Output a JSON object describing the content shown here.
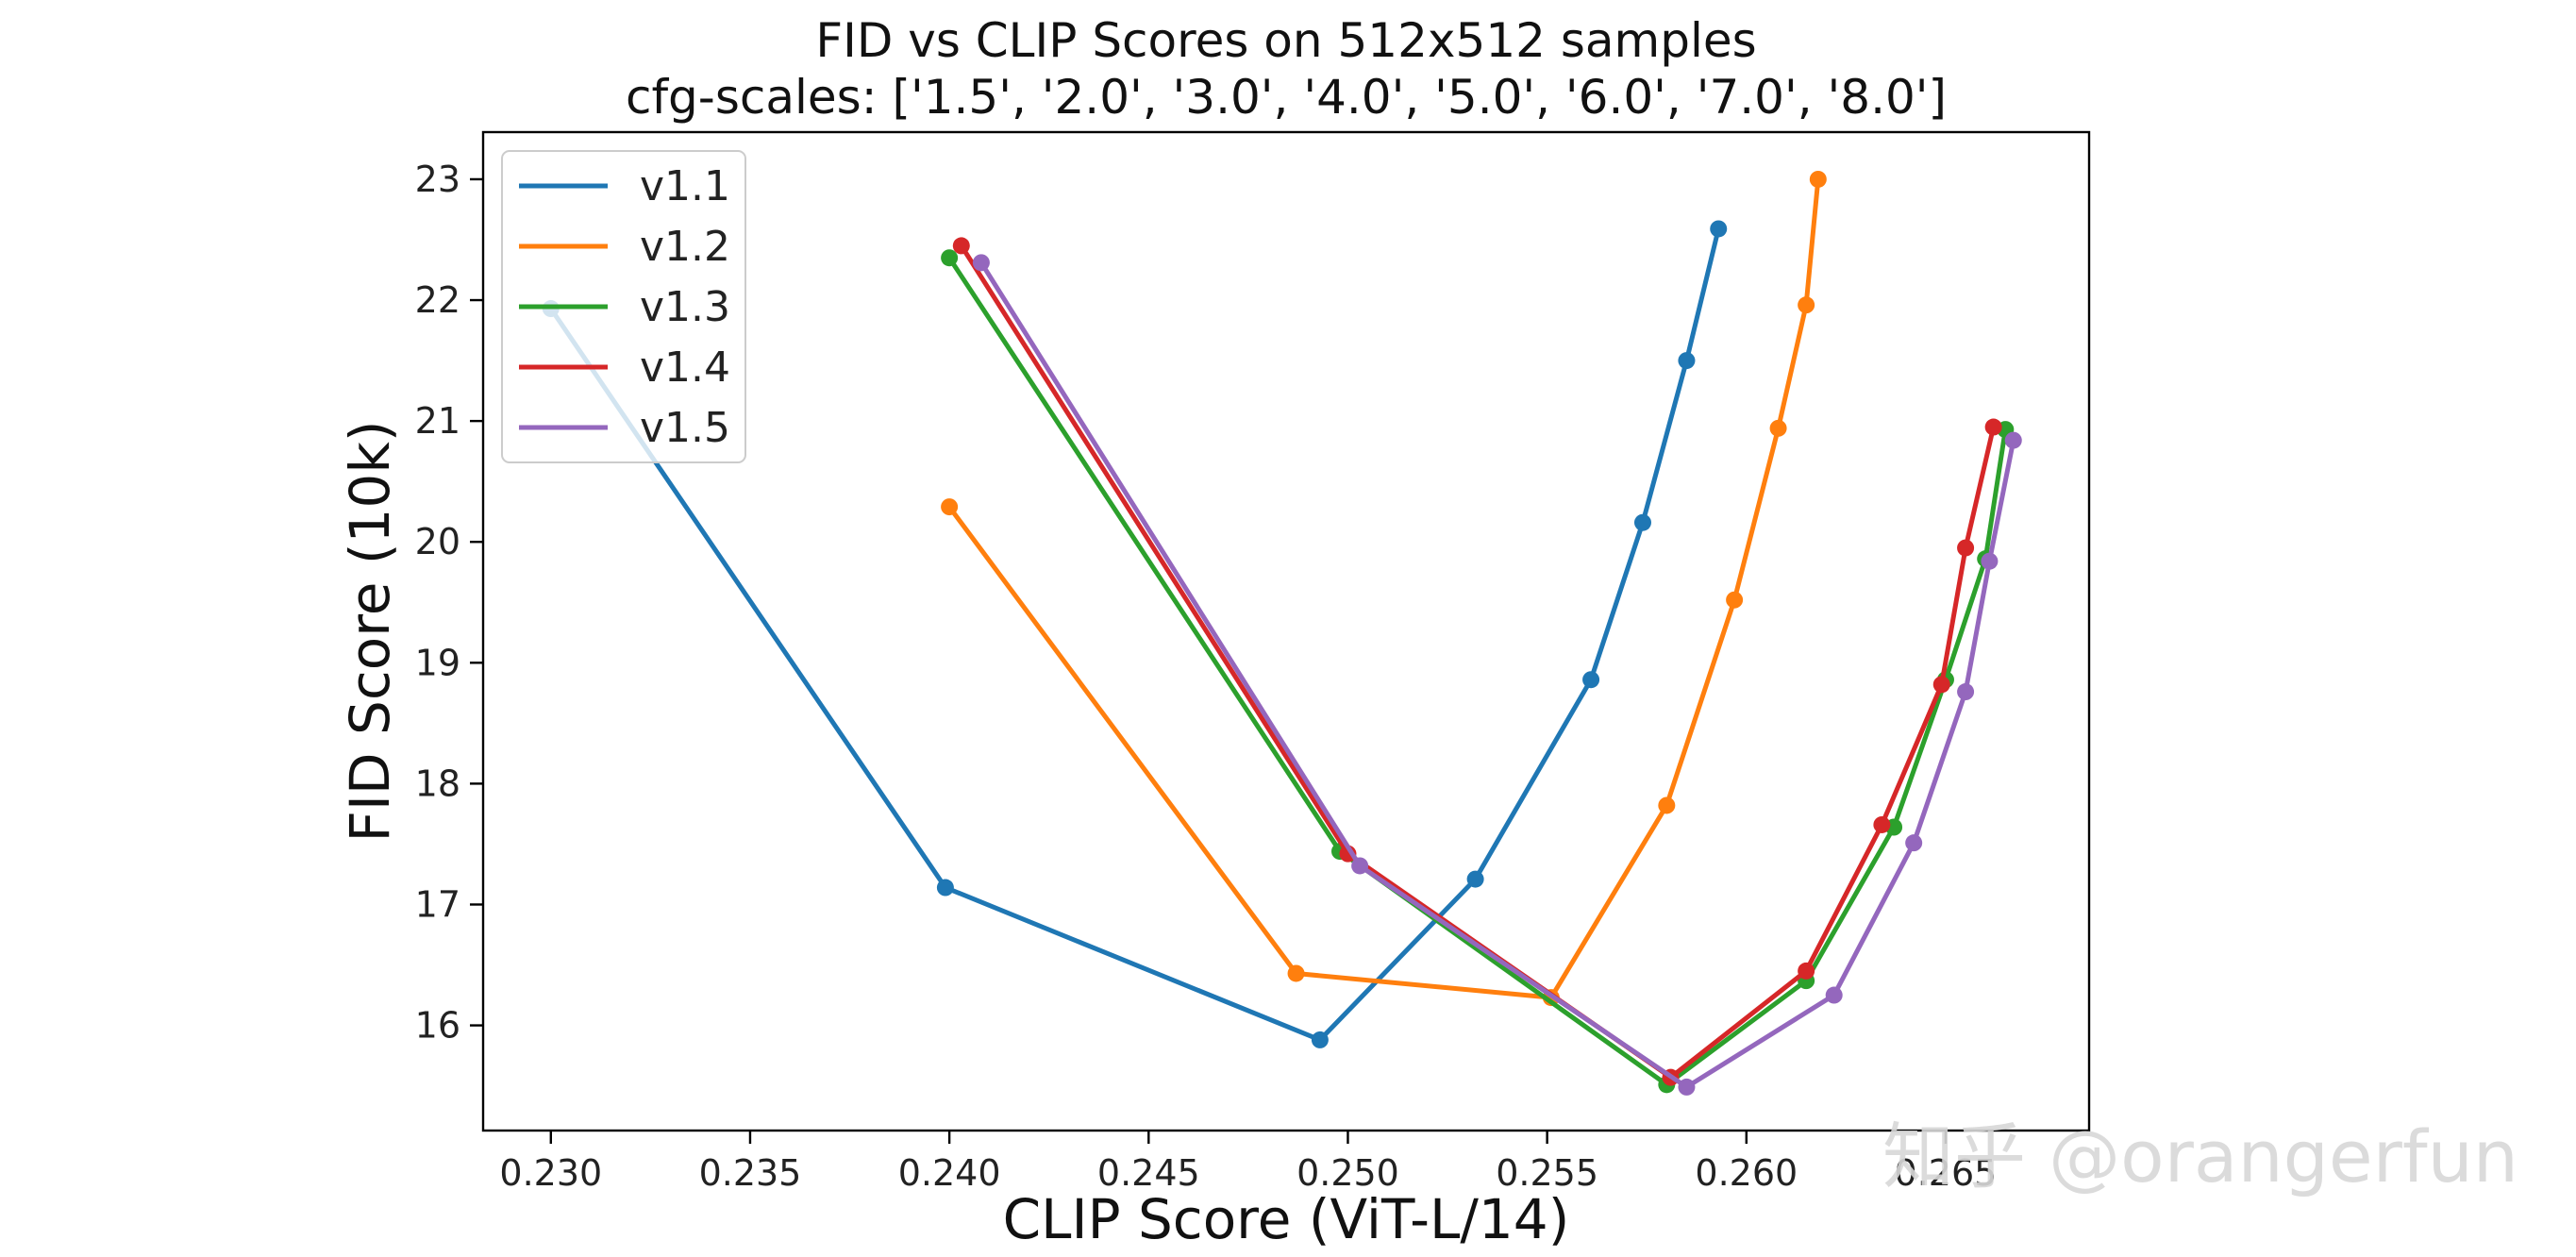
{
  "chart_data": {
    "type": "line",
    "title": "FID vs CLIP Scores on 512x512 samples",
    "subtitle": "cfg-scales: ['1.5', '2.0', '3.0', '4.0', '5.0', '6.0', '7.0', '8.0']",
    "xlabel": "CLIP Score (ViT-L/14)",
    "ylabel": "FID Score (10k)",
    "xlim": [
      0.2283,
      0.2686
    ],
    "ylim": [
      15.13,
      23.39
    ],
    "xticks": [
      "0.230",
      "0.235",
      "0.240",
      "0.245",
      "0.250",
      "0.255",
      "0.260",
      "0.265"
    ],
    "yticks": [
      "16",
      "17",
      "18",
      "19",
      "20",
      "21",
      "22",
      "23"
    ],
    "legend_position": "top-left",
    "grid": false,
    "series": [
      {
        "name": "v1.1",
        "color": "#1f77b4",
        "x": [
          0.23,
          0.2399,
          0.2493,
          0.2532,
          0.2561,
          0.2574,
          0.2585,
          0.2593
        ],
        "y": [
          21.93,
          17.14,
          15.88,
          17.21,
          18.86,
          20.16,
          21.5,
          22.59
        ]
      },
      {
        "name": "v1.2",
        "color": "#ff7f0e",
        "x": [
          0.24,
          0.2487,
          0.2551,
          0.258,
          0.2597,
          0.2608,
          0.2615,
          0.2618
        ],
        "y": [
          20.29,
          16.43,
          16.23,
          17.82,
          19.52,
          20.94,
          21.96,
          23.0
        ]
      },
      {
        "name": "v1.3",
        "color": "#2ca02c",
        "x": [
          0.24,
          0.2498,
          0.258,
          0.2615,
          0.2637,
          0.265,
          0.266,
          0.2665
        ],
        "y": [
          22.35,
          17.44,
          15.51,
          16.37,
          17.64,
          18.86,
          19.86,
          20.93
        ]
      },
      {
        "name": "v1.4",
        "color": "#d62728",
        "x": [
          0.2403,
          0.25,
          0.2581,
          0.2615,
          0.2634,
          0.2649,
          0.2655,
          0.2662
        ],
        "y": [
          22.45,
          17.42,
          15.57,
          16.45,
          17.66,
          18.82,
          19.95,
          20.95
        ]
      },
      {
        "name": "v1.5",
        "color": "#9467bd",
        "x": [
          0.2408,
          0.2503,
          0.2585,
          0.2622,
          0.2642,
          0.2655,
          0.2661,
          0.2667
        ],
        "y": [
          22.31,
          17.32,
          15.49,
          16.25,
          17.51,
          18.76,
          19.84,
          20.84
        ]
      }
    ]
  },
  "watermark": "知乎 @orangerfun"
}
